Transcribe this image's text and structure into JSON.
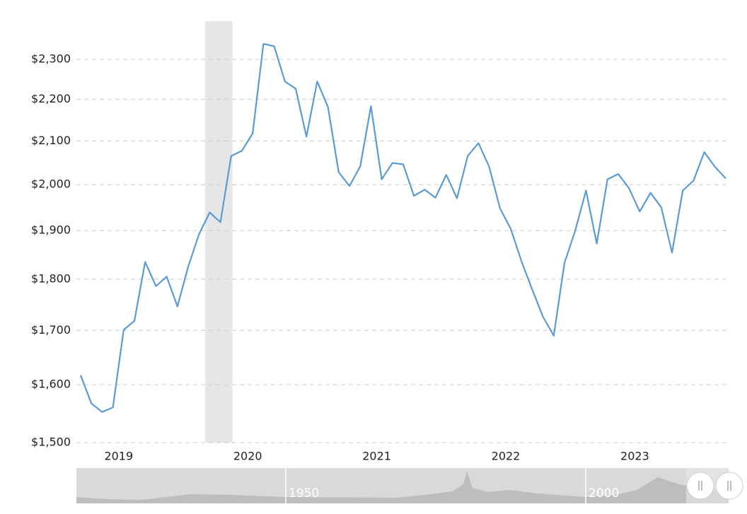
{
  "chart_data": {
    "type": "line",
    "log_scale": true,
    "grid": true,
    "color": "#5b9bd5",
    "x": [
      "2019-03",
      "2019-04",
      "2019-05",
      "2019-06",
      "2019-07",
      "2019-08",
      "2019-09",
      "2019-10",
      "2019-11",
      "2019-12",
      "2020-01",
      "2020-02",
      "2020-03",
      "2020-04",
      "2020-05",
      "2020-06",
      "2020-07",
      "2020-08",
      "2020-09",
      "2020-10",
      "2020-11",
      "2020-12",
      "2021-01",
      "2021-02",
      "2021-03",
      "2021-04",
      "2021-05",
      "2021-06",
      "2021-07",
      "2021-08",
      "2021-09",
      "2021-10",
      "2021-11",
      "2021-12",
      "2022-01",
      "2022-02",
      "2022-03",
      "2022-04",
      "2022-05",
      "2022-06",
      "2022-07",
      "2022-08",
      "2022-09",
      "2022-10",
      "2022-11",
      "2022-12",
      "2023-01",
      "2023-02",
      "2023-03",
      "2023-04",
      "2023-05",
      "2023-06",
      "2023-07",
      "2023-08",
      "2023-09",
      "2023-10",
      "2023-11",
      "2023-12",
      "2024-01",
      "2024-02",
      "2024-03"
    ],
    "values": [
      1617,
      1567,
      1552,
      1560,
      1701,
      1718,
      1835,
      1786,
      1805,
      1746,
      1825,
      1892,
      1939,
      1918,
      2065,
      2077,
      2118,
      2340,
      2334,
      2244,
      2226,
      2110,
      2244,
      2181,
      2028,
      1997,
      2041,
      2183,
      2012,
      2049,
      2046,
      1975,
      1989,
      1971,
      2022,
      1970,
      2065,
      2095,
      2040,
      1948,
      1904,
      1836,
      1779,
      1726,
      1690,
      1833,
      1900,
      1987,
      1873,
      2012,
      2024,
      1992,
      1941,
      1982,
      1950,
      1854,
      1987,
      2009,
      2074,
      2040,
      2014
    ],
    "ylim": [
      1500,
      2400
    ],
    "yticks": [
      {
        "value": 1500,
        "label": "$1,500"
      },
      {
        "value": 1600,
        "label": "$1,600"
      },
      {
        "value": 1700,
        "label": "$1,700"
      },
      {
        "value": 1800,
        "label": "$1,800"
      },
      {
        "value": 1900,
        "label": "$1,900"
      },
      {
        "value": 2000,
        "label": "$2,000"
      },
      {
        "value": 2100,
        "label": "$2,100"
      },
      {
        "value": 2200,
        "label": "$2,200"
      },
      {
        "value": 2300,
        "label": "$2,300"
      }
    ],
    "xticks": [
      2019,
      2020,
      2021,
      2022,
      2023
    ],
    "recessions": [
      {
        "start": "2020-02",
        "end": "2020-04"
      }
    ],
    "navigator_labels": [
      "1950",
      "2000"
    ]
  }
}
